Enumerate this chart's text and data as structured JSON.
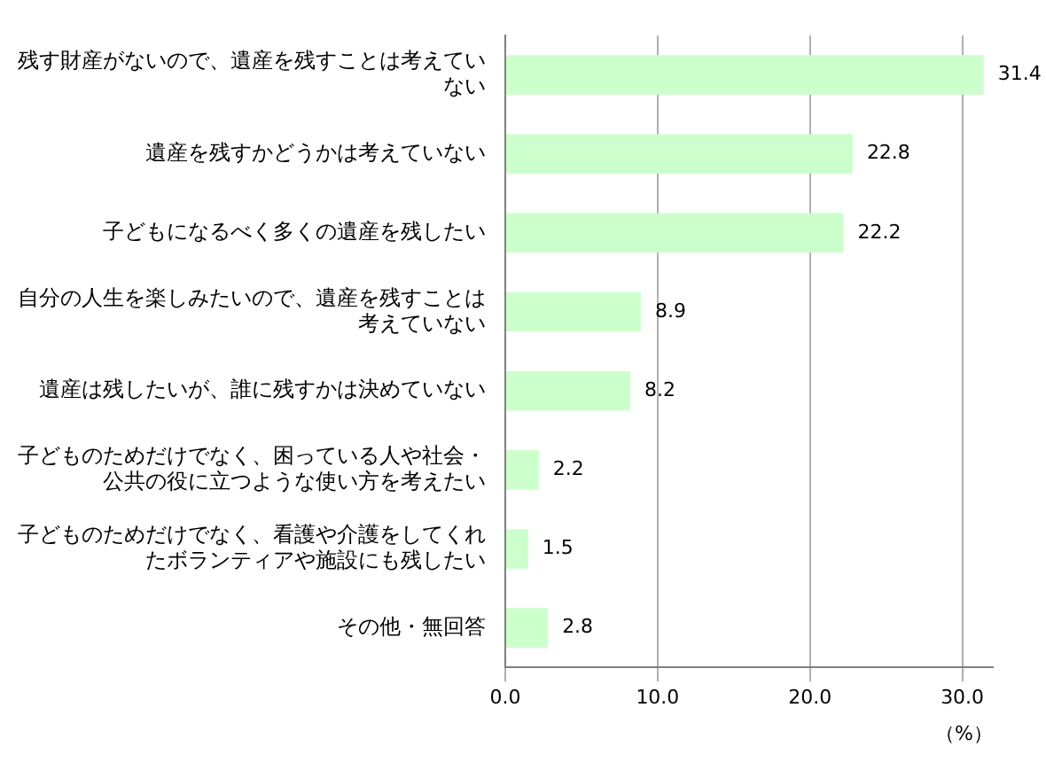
{
  "chart_data": {
    "type": "bar",
    "orientation": "horizontal",
    "categories": [
      "残す財産がないので、遺産を残すことは考えていない",
      "遺産を残すかどうかは考えていない",
      "子どもになるべく多くの遺産を残したい",
      "自分の人生を楽しみたいので、遺産を残すことは考えていない",
      "遺産は残したいが、誰に残すかは決めていない",
      "子どものためだけでなく、困っている人や社会・公共の役に立つような使い方を考えたい",
      "子どものためだけでなく、看護や介護をしてくれたボランティアや施設にも残したい",
      "その他・無回答"
    ],
    "values": [
      31.4,
      22.8,
      22.2,
      8.9,
      8.2,
      2.2,
      1.5,
      2.8
    ],
    "color": "#ccffcc",
    "xlim": [
      0,
      32
    ],
    "xticks": [
      {
        "value": 0,
        "label": "0.0"
      },
      {
        "value": 10,
        "label": "10.0"
      },
      {
        "value": 20,
        "label": "20.0"
      },
      {
        "value": 30,
        "label": "30.0"
      }
    ],
    "xlabel": "（%）",
    "grid": "x",
    "data_labels": true
  }
}
